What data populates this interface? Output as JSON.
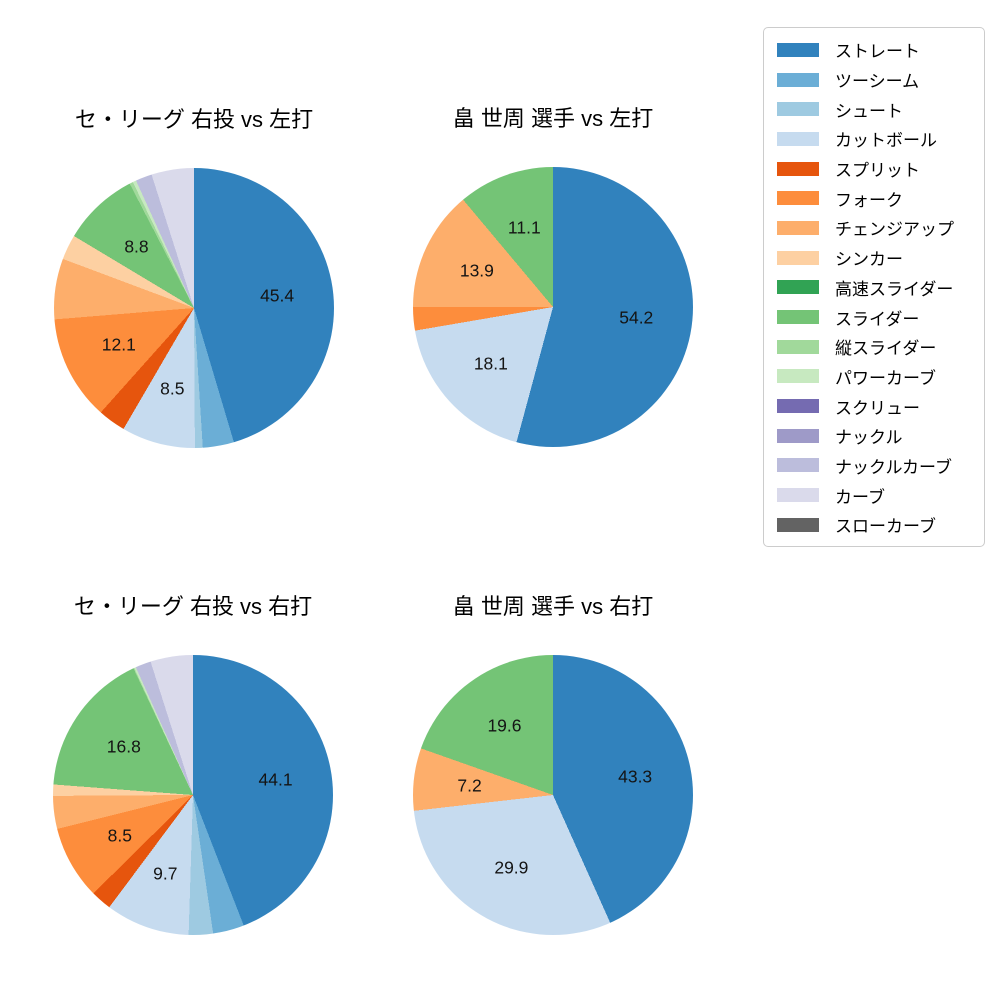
{
  "page_background": "#ffffff",
  "legend": {
    "position": "upper right",
    "border_color": "#cccccc",
    "items": [
      {
        "label": "ストレート",
        "color": "#3182bd"
      },
      {
        "label": "ツーシーム",
        "color": "#6baed6"
      },
      {
        "label": "シュート",
        "color": "#9ecae1"
      },
      {
        "label": "カットボール",
        "color": "#c6dbef"
      },
      {
        "label": "スプリット",
        "color": "#e6550d"
      },
      {
        "label": "フォーク",
        "color": "#fd8d3c"
      },
      {
        "label": "チェンジアップ",
        "color": "#fdae6b"
      },
      {
        "label": "シンカー",
        "color": "#fdd0a2"
      },
      {
        "label": "高速スライダー",
        "color": "#31a354"
      },
      {
        "label": "スライダー",
        "color": "#74c476"
      },
      {
        "label": "縦スライダー",
        "color": "#a1d99b"
      },
      {
        "label": "パワーカーブ",
        "color": "#c7e9c0"
      },
      {
        "label": "スクリュー",
        "color": "#756bb1"
      },
      {
        "label": "ナックル",
        "color": "#9e9ac8"
      },
      {
        "label": "ナックルカーブ",
        "color": "#bcbddc"
      },
      {
        "label": "カーブ",
        "color": "#dadaeb"
      },
      {
        "label": "スローカーブ",
        "color": "#636363"
      }
    ]
  },
  "chart_data": [
    {
      "type": "pie",
      "title": "セ・リーグ 右投 vs 左打",
      "start_angle": "top",
      "direction": "clockwise",
      "pct_label_distance": 0.6,
      "series": [
        {
          "label": "ストレート",
          "value": 45.4,
          "pct_label": "45.4"
        },
        {
          "label": "ツーシーム",
          "value": 3.6,
          "pct_label": ""
        },
        {
          "label": "シュート",
          "value": 0.9,
          "pct_label": ""
        },
        {
          "label": "カットボール",
          "value": 8.5,
          "pct_label": "8.5"
        },
        {
          "label": "スプリット",
          "value": 3.2,
          "pct_label": ""
        },
        {
          "label": "フォーク",
          "value": 12.1,
          "pct_label": "12.1"
        },
        {
          "label": "チェンジアップ",
          "value": 7.0,
          "pct_label": ""
        },
        {
          "label": "シンカー",
          "value": 2.9,
          "pct_label": ""
        },
        {
          "label": "スライダー",
          "value": 8.8,
          "pct_label": "8.8"
        },
        {
          "label": "縦スライダー",
          "value": 0.4,
          "pct_label": ""
        },
        {
          "label": "パワーカーブ",
          "value": 0.4,
          "pct_label": ""
        },
        {
          "label": "ナックルカーブ",
          "value": 1.9,
          "pct_label": ""
        },
        {
          "label": "カーブ",
          "value": 4.9,
          "pct_label": ""
        }
      ]
    },
    {
      "type": "pie",
      "title": "畠 世周 選手 vs 左打",
      "start_angle": "top",
      "direction": "clockwise",
      "pct_label_distance": 0.6,
      "series": [
        {
          "label": "ストレート",
          "value": 54.2,
          "pct_label": "54.2"
        },
        {
          "label": "カットボール",
          "value": 18.1,
          "pct_label": "18.1"
        },
        {
          "label": "フォーク",
          "value": 2.7,
          "pct_label": ""
        },
        {
          "label": "チェンジアップ",
          "value": 13.9,
          "pct_label": "13.9"
        },
        {
          "label": "スライダー",
          "value": 11.1,
          "pct_label": "11.1"
        }
      ]
    },
    {
      "type": "pie",
      "title": "セ・リーグ 右投 vs 右打",
      "start_angle": "top",
      "direction": "clockwise",
      "pct_label_distance": 0.6,
      "series": [
        {
          "label": "ストレート",
          "value": 44.1,
          "pct_label": "44.1"
        },
        {
          "label": "ツーシーム",
          "value": 3.6,
          "pct_label": ""
        },
        {
          "label": "シュート",
          "value": 2.8,
          "pct_label": ""
        },
        {
          "label": "カットボール",
          "value": 9.7,
          "pct_label": "9.7"
        },
        {
          "label": "スプリット",
          "value": 2.4,
          "pct_label": ""
        },
        {
          "label": "フォーク",
          "value": 8.5,
          "pct_label": "8.5"
        },
        {
          "label": "チェンジアップ",
          "value": 3.8,
          "pct_label": ""
        },
        {
          "label": "シンカー",
          "value": 1.3,
          "pct_label": ""
        },
        {
          "label": "スライダー",
          "value": 16.8,
          "pct_label": "16.8"
        },
        {
          "label": "縦スライダー",
          "value": 0.1,
          "pct_label": ""
        },
        {
          "label": "パワーカーブ",
          "value": 0.2,
          "pct_label": ""
        },
        {
          "label": "ナックルカーブ",
          "value": 1.8,
          "pct_label": ""
        },
        {
          "label": "カーブ",
          "value": 4.9,
          "pct_label": ""
        }
      ]
    },
    {
      "type": "pie",
      "title": "畠 世周 選手 vs 右打",
      "start_angle": "top",
      "direction": "clockwise",
      "pct_label_distance": 0.6,
      "series": [
        {
          "label": "ストレート",
          "value": 43.3,
          "pct_label": "43.3"
        },
        {
          "label": "カットボール",
          "value": 29.9,
          "pct_label": "29.9"
        },
        {
          "label": "チェンジアップ",
          "value": 7.2,
          "pct_label": "7.2"
        },
        {
          "label": "スライダー",
          "value": 19.6,
          "pct_label": "19.6"
        }
      ]
    }
  ]
}
